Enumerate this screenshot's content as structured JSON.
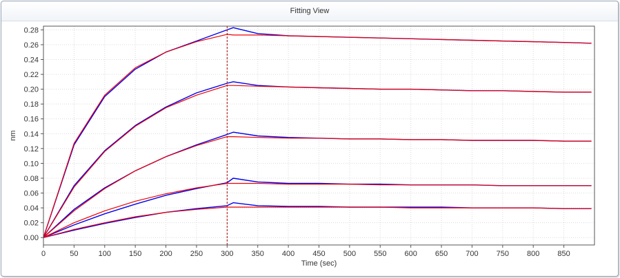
{
  "window": {
    "title": "Fitting View"
  },
  "chart_data": {
    "type": "line",
    "title": "Fitting View",
    "xlabel": "Time (sec)",
    "ylabel": "nm",
    "xlim": [
      0,
      900
    ],
    "ylim": [
      -0.01,
      0.285
    ],
    "x_ticks": [
      "0",
      "50",
      "100",
      "150",
      "200",
      "250",
      "300",
      "350",
      "400",
      "450",
      "500",
      "550",
      "600",
      "650",
      "700",
      "750",
      "800",
      "850"
    ],
    "y_ticks": [
      "0.00",
      "0.02",
      "0.04",
      "0.06",
      "0.08",
      "0.10",
      "0.12",
      "0.14",
      "0.16",
      "0.18",
      "0.20",
      "0.22",
      "0.24",
      "0.26",
      "0.28"
    ],
    "grid": true,
    "association_end": 300,
    "series": [
      {
        "x": [
          0,
          50,
          100,
          150,
          200,
          250,
          300,
          310,
          350,
          400,
          450,
          500,
          550,
          600,
          650,
          700,
          750,
          800,
          850,
          895
        ],
        "measured": [
          0.0,
          0.125,
          0.19,
          0.227,
          0.25,
          0.265,
          0.28,
          0.283,
          0.275,
          0.272,
          0.271,
          0.27,
          0.269,
          0.268,
          0.267,
          0.266,
          0.265,
          0.264,
          0.263,
          0.262
        ],
        "fit": [
          0.0,
          0.127,
          0.192,
          0.229,
          0.25,
          0.264,
          0.274,
          0.273,
          0.273,
          0.272,
          0.271,
          0.27,
          0.269,
          0.268,
          0.267,
          0.266,
          0.265,
          0.264,
          0.263,
          0.262
        ]
      },
      {
        "x": [
          0,
          50,
          100,
          150,
          200,
          250,
          300,
          310,
          350,
          400,
          450,
          500,
          550,
          600,
          650,
          700,
          750,
          800,
          850,
          895
        ],
        "measured": [
          0.0,
          0.07,
          0.117,
          0.151,
          0.176,
          0.195,
          0.208,
          0.21,
          0.205,
          0.203,
          0.202,
          0.201,
          0.2,
          0.2,
          0.199,
          0.198,
          0.198,
          0.197,
          0.196,
          0.196
        ],
        "fit": [
          0.0,
          0.068,
          0.116,
          0.15,
          0.175,
          0.192,
          0.205,
          0.205,
          0.204,
          0.203,
          0.202,
          0.201,
          0.2,
          0.2,
          0.199,
          0.198,
          0.198,
          0.197,
          0.196,
          0.196
        ]
      },
      {
        "x": [
          0,
          50,
          100,
          150,
          200,
          250,
          300,
          310,
          350,
          400,
          450,
          500,
          550,
          600,
          650,
          700,
          750,
          800,
          850,
          895
        ],
        "measured": [
          0.0,
          0.038,
          0.067,
          0.09,
          0.109,
          0.125,
          0.139,
          0.142,
          0.137,
          0.135,
          0.134,
          0.133,
          0.133,
          0.132,
          0.132,
          0.131,
          0.131,
          0.131,
          0.13,
          0.13
        ],
        "fit": [
          0.0,
          0.036,
          0.066,
          0.09,
          0.109,
          0.124,
          0.136,
          0.136,
          0.135,
          0.134,
          0.134,
          0.133,
          0.133,
          0.132,
          0.132,
          0.131,
          0.131,
          0.131,
          0.13,
          0.13
        ]
      },
      {
        "x": [
          0,
          50,
          100,
          150,
          200,
          250,
          300,
          310,
          350,
          400,
          450,
          500,
          550,
          600,
          650,
          700,
          750,
          800,
          850,
          895
        ],
        "measured": [
          0.0,
          0.017,
          0.032,
          0.045,
          0.057,
          0.066,
          0.074,
          0.08,
          0.075,
          0.073,
          0.073,
          0.072,
          0.072,
          0.071,
          0.071,
          0.071,
          0.07,
          0.07,
          0.07,
          0.07
        ],
        "fit": [
          0.0,
          0.02,
          0.036,
          0.049,
          0.059,
          0.067,
          0.073,
          0.073,
          0.073,
          0.072,
          0.072,
          0.072,
          0.071,
          0.071,
          0.071,
          0.071,
          0.07,
          0.07,
          0.07,
          0.07
        ]
      },
      {
        "x": [
          0,
          50,
          100,
          150,
          200,
          250,
          300,
          310,
          350,
          400,
          450,
          500,
          550,
          600,
          650,
          700,
          750,
          800,
          850,
          895
        ],
        "measured": [
          0.0,
          0.01,
          0.019,
          0.027,
          0.034,
          0.039,
          0.043,
          0.047,
          0.043,
          0.042,
          0.042,
          0.041,
          0.041,
          0.041,
          0.041,
          0.04,
          0.04,
          0.04,
          0.039,
          0.039
        ],
        "fit": [
          0.0,
          0.011,
          0.02,
          0.028,
          0.034,
          0.038,
          0.041,
          0.041,
          0.041,
          0.041,
          0.041,
          0.041,
          0.041,
          0.04,
          0.04,
          0.04,
          0.04,
          0.04,
          0.039,
          0.039
        ]
      }
    ],
    "colors": {
      "measured": "#0000ee",
      "fit": "#ee0000",
      "marker": "#aa0000",
      "grid": "#d9d9d9",
      "axis": "#555555"
    }
  }
}
